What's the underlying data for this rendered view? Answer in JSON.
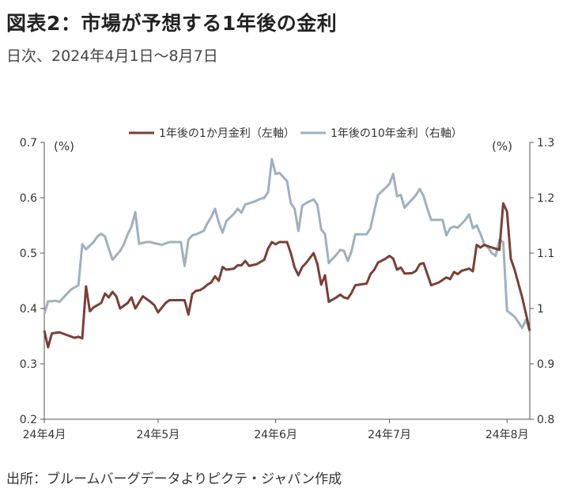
{
  "title": "図表2：市場が予想する1年後の金利",
  "subtitle": "日次、2024年4月1日～8月7日",
  "source": "出所：ブルームバーグデータよりピクテ・ジャパン作成",
  "colors": {
    "series1": "#7b3f34",
    "series2": "#9fb0c1",
    "axis": "#555555"
  },
  "chart_data": {
    "type": "line",
    "legend_position": "top",
    "left_unit": "(%)",
    "right_unit": "(%)",
    "x_ticks": [
      {
        "day": 0,
        "label": "24年4月"
      },
      {
        "day": 30,
        "label": "24年5月"
      },
      {
        "day": 61,
        "label": "24年6月"
      },
      {
        "day": 91,
        "label": "24年7月"
      },
      {
        "day": 122,
        "label": "24年8月"
      }
    ],
    "y_left": {
      "min": 0.2,
      "max": 0.7,
      "ticks": [
        "0.2",
        "0.3",
        "0.4",
        "0.5",
        "0.6",
        "0.7"
      ]
    },
    "y_right": {
      "min": 0.8,
      "max": 1.3,
      "ticks": [
        "0.8",
        "0.9",
        "1",
        "1.1",
        "1.2",
        "1.3"
      ]
    },
    "grid": false,
    "series": [
      {
        "name": "1年後の1か月金利（左軸）",
        "axis": "left",
        "data": [
          [
            0,
            0.36
          ],
          [
            1,
            0.33
          ],
          [
            2,
            0.355
          ],
          [
            4,
            0.357
          ],
          [
            6,
            0.352
          ],
          [
            8,
            0.347
          ],
          [
            9,
            0.349
          ],
          [
            10,
            0.346
          ],
          [
            11,
            0.44
          ],
          [
            12,
            0.395
          ],
          [
            13,
            0.402
          ],
          [
            15,
            0.41
          ],
          [
            16,
            0.427
          ],
          [
            17,
            0.42
          ],
          [
            18,
            0.43
          ],
          [
            19,
            0.422
          ],
          [
            20,
            0.4
          ],
          [
            22,
            0.41
          ],
          [
            23,
            0.42
          ],
          [
            24,
            0.4
          ],
          [
            26,
            0.422
          ],
          [
            28,
            0.412
          ],
          [
            29,
            0.406
          ],
          [
            30,
            0.393
          ],
          [
            32,
            0.41
          ],
          [
            33,
            0.415
          ],
          [
            37,
            0.415
          ],
          [
            38,
            0.389
          ],
          [
            39,
            0.426
          ],
          [
            40,
            0.432
          ],
          [
            41,
            0.433
          ],
          [
            42,
            0.437
          ],
          [
            43,
            0.443
          ],
          [
            44,
            0.447
          ],
          [
            45,
            0.458
          ],
          [
            46,
            0.45
          ],
          [
            47,
            0.475
          ],
          [
            48,
            0.47
          ],
          [
            50,
            0.472
          ],
          [
            51,
            0.478
          ],
          [
            52,
            0.478
          ],
          [
            53,
            0.486
          ],
          [
            54,
            0.477
          ],
          [
            56,
            0.48
          ],
          [
            58,
            0.488
          ],
          [
            59,
            0.508
          ],
          [
            60,
            0.52
          ],
          [
            61,
            0.516
          ],
          [
            62,
            0.52
          ],
          [
            64,
            0.52
          ],
          [
            65,
            0.5
          ],
          [
            66,
            0.474
          ],
          [
            67,
            0.46
          ],
          [
            68,
            0.475
          ],
          [
            69,
            0.482
          ],
          [
            71,
            0.5
          ],
          [
            72,
            0.48
          ],
          [
            73,
            0.443
          ],
          [
            74,
            0.46
          ],
          [
            75,
            0.412
          ],
          [
            77,
            0.42
          ],
          [
            78,
            0.425
          ],
          [
            79,
            0.42
          ],
          [
            80,
            0.418
          ],
          [
            81,
            0.428
          ],
          [
            82,
            0.442
          ],
          [
            85,
            0.445
          ],
          [
            86,
            0.462
          ],
          [
            87,
            0.47
          ],
          [
            88,
            0.483
          ],
          [
            90,
            0.49
          ],
          [
            91,
            0.495
          ],
          [
            92,
            0.49
          ],
          [
            93,
            0.47
          ],
          [
            94,
            0.474
          ],
          [
            95,
            0.463
          ],
          [
            97,
            0.464
          ],
          [
            98,
            0.468
          ],
          [
            99,
            0.48
          ],
          [
            100,
            0.482
          ],
          [
            101,
            0.462
          ],
          [
            102,
            0.442
          ],
          [
            104,
            0.447
          ],
          [
            106,
            0.456
          ],
          [
            107,
            0.453
          ],
          [
            108,
            0.466
          ],
          [
            109,
            0.462
          ],
          [
            110,
            0.468
          ],
          [
            112,
            0.472
          ],
          [
            113,
            0.467
          ],
          [
            114,
            0.515
          ],
          [
            115,
            0.51
          ],
          [
            116,
            0.515
          ],
          [
            118,
            0.51
          ],
          [
            120,
            0.506
          ],
          [
            121,
            0.59
          ],
          [
            122,
            0.575
          ],
          [
            123,
            0.49
          ],
          [
            124,
            0.47
          ],
          [
            126,
            0.42
          ],
          [
            127,
            0.39
          ],
          [
            128,
            0.36
          ]
        ]
      },
      {
        "name": "1年後の10年金利（右軸）",
        "axis": "right",
        "data": [
          [
            0,
            0.99
          ],
          [
            1,
            1.013
          ],
          [
            2,
            1.013
          ],
          [
            3,
            1.014
          ],
          [
            4,
            1.012
          ],
          [
            7,
            1.034
          ],
          [
            9,
            1.042
          ],
          [
            10,
            1.116
          ],
          [
            11,
            1.107
          ],
          [
            13,
            1.12
          ],
          [
            14,
            1.13
          ],
          [
            15,
            1.135
          ],
          [
            16,
            1.13
          ],
          [
            17,
            1.108
          ],
          [
            18,
            1.088
          ],
          [
            20,
            1.104
          ],
          [
            21,
            1.116
          ],
          [
            22,
            1.134
          ],
          [
            23,
            1.148
          ],
          [
            24,
            1.174
          ],
          [
            25,
            1.117
          ],
          [
            27,
            1.12
          ],
          [
            28,
            1.12
          ],
          [
            29,
            1.118
          ],
          [
            31,
            1.115
          ],
          [
            33,
            1.12
          ],
          [
            36,
            1.12
          ],
          [
            37,
            1.077
          ],
          [
            38,
            1.124
          ],
          [
            39,
            1.132
          ],
          [
            40,
            1.134
          ],
          [
            42,
            1.14
          ],
          [
            43,
            1.154
          ],
          [
            44,
            1.165
          ],
          [
            45,
            1.18
          ],
          [
            46,
            1.155
          ],
          [
            47,
            1.137
          ],
          [
            48,
            1.158
          ],
          [
            50,
            1.171
          ],
          [
            51,
            1.18
          ],
          [
            52,
            1.173
          ],
          [
            53,
            1.188
          ],
          [
            55,
            1.192
          ],
          [
            57,
            1.198
          ],
          [
            58,
            1.2
          ],
          [
            59,
            1.21
          ],
          [
            60,
            1.27
          ],
          [
            61,
            1.243
          ],
          [
            62,
            1.245
          ],
          [
            64,
            1.23
          ],
          [
            65,
            1.19
          ],
          [
            66,
            1.18
          ],
          [
            67,
            1.14
          ],
          [
            68,
            1.186
          ],
          [
            70,
            1.194
          ],
          [
            71,
            1.197
          ],
          [
            72,
            1.187
          ],
          [
            73,
            1.143
          ],
          [
            74,
            1.134
          ],
          [
            75,
            1.082
          ],
          [
            76,
            1.09
          ],
          [
            77,
            1.097
          ],
          [
            78,
            1.106
          ],
          [
            79,
            1.104
          ],
          [
            80,
            1.086
          ],
          [
            81,
            1.103
          ],
          [
            82,
            1.134
          ],
          [
            85,
            1.134
          ],
          [
            86,
            1.145
          ],
          [
            87,
            1.176
          ],
          [
            88,
            1.205
          ],
          [
            90,
            1.218
          ],
          [
            91,
            1.225
          ],
          [
            92,
            1.243
          ],
          [
            93,
            1.203
          ],
          [
            94,
            1.205
          ],
          [
            95,
            1.182
          ],
          [
            96,
            1.19
          ],
          [
            97,
            1.197
          ],
          [
            98,
            1.205
          ],
          [
            99,
            1.216
          ],
          [
            100,
            1.203
          ],
          [
            101,
            1.18
          ],
          [
            102,
            1.16
          ],
          [
            105,
            1.16
          ],
          [
            106,
            1.132
          ],
          [
            107,
            1.145
          ],
          [
            108,
            1.148
          ],
          [
            109,
            1.146
          ],
          [
            110,
            1.153
          ],
          [
            111,
            1.16
          ],
          [
            112,
            1.17
          ],
          [
            113,
            1.145
          ],
          [
            114,
            1.15
          ],
          [
            115,
            1.135
          ],
          [
            116,
            1.116
          ],
          [
            117,
            1.11
          ],
          [
            118,
            1.1
          ],
          [
            119,
            1.095
          ],
          [
            120,
            1.124
          ],
          [
            121,
            1.12
          ],
          [
            122,
            0.996
          ],
          [
            124,
            0.985
          ],
          [
            126,
            0.965
          ],
          [
            127,
            0.98
          ],
          [
            128,
            0.958
          ]
        ]
      }
    ]
  }
}
